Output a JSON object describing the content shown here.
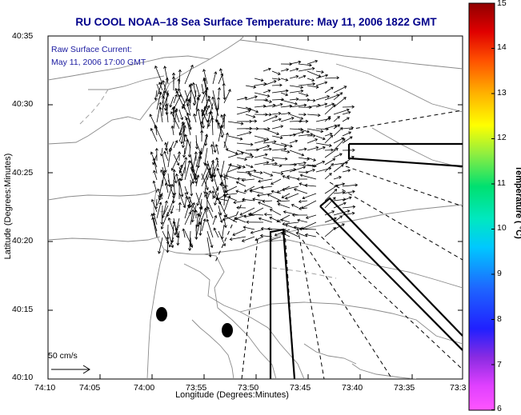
{
  "title": "RU COOL  NOAA–18  Sea Surface Temperature:  May 11, 2006 1822 GMT",
  "annotation": {
    "line1": "Raw Surface Current:",
    "line2": "May 11, 2006 17:00 GMT"
  },
  "axes": {
    "xlabel": "Longitude (Degrees:Minutes)",
    "ylabel": "Latitude (Degrees:Minutes)",
    "xticks": [
      "74:10",
      "74:05",
      "74:00",
      "73:55",
      "73:50",
      "73:45",
      "73:40",
      "73:35",
      "73:3"
    ],
    "yticks": [
      "40:35",
      "40:30",
      "40:25",
      "40:20",
      "40:15",
      "40:10"
    ]
  },
  "colorbar": {
    "label": "Temperature ( °C)",
    "ticks": [
      "15",
      "14",
      "13",
      "12",
      "11",
      "10",
      "9",
      "8",
      "7",
      "6"
    ],
    "range": [
      6,
      15
    ]
  },
  "scale": {
    "label": "50 cm/s"
  },
  "colors": {
    "title": "#00008b",
    "annotation": "#1a1aa0",
    "coastline": "#808080",
    "vectors": "#000000"
  }
}
